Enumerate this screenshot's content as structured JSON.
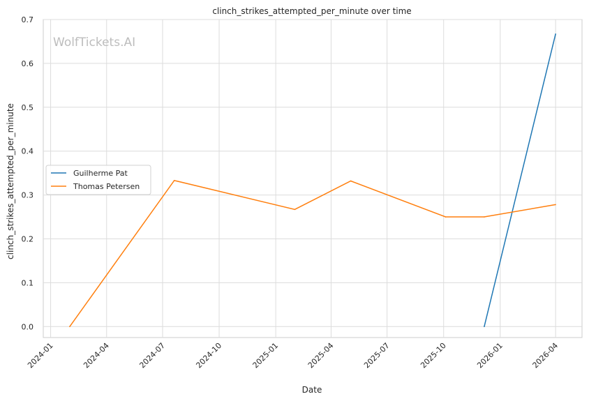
{
  "chart_data": {
    "type": "line",
    "title": "clinch_strikes_attempted_per_minute over time",
    "xlabel": "Date",
    "ylabel": "clinch_strikes_attempted_per_minute",
    "watermark": "WolfTickets.AI",
    "x_ticks": [
      "2024-01",
      "2024-04",
      "2024-07",
      "2024-10",
      "2025-01",
      "2025-04",
      "2025-07",
      "2025-10",
      "2026-01",
      "2026-04"
    ],
    "y_ticks": [
      "0.0",
      "0.1",
      "0.2",
      "0.3",
      "0.4",
      "0.5",
      "0.6",
      "0.7"
    ],
    "xlim": [
      "2023-12-20",
      "2026-05-14"
    ],
    "ylim": [
      -0.025,
      0.7
    ],
    "grid": true,
    "legend_position": "center-left",
    "series": [
      {
        "name": "Guilherme Pat",
        "color": "#1f77b4",
        "points": [
          {
            "x": "2025-12-06",
            "y": 0.0
          },
          {
            "x": "2026-04-01",
            "y": 0.667
          }
        ]
      },
      {
        "name": "Thomas Petersen",
        "color": "#ff7f0e",
        "points": [
          {
            "x": "2024-02-01",
            "y": 0.0
          },
          {
            "x": "2024-07-20",
            "y": 0.333
          },
          {
            "x": "2025-02-01",
            "y": 0.267
          },
          {
            "x": "2025-05-03",
            "y": 0.332
          },
          {
            "x": "2025-10-04",
            "y": 0.25
          },
          {
            "x": "2025-12-06",
            "y": 0.25
          },
          {
            "x": "2026-04-01",
            "y": 0.278
          }
        ]
      }
    ]
  }
}
